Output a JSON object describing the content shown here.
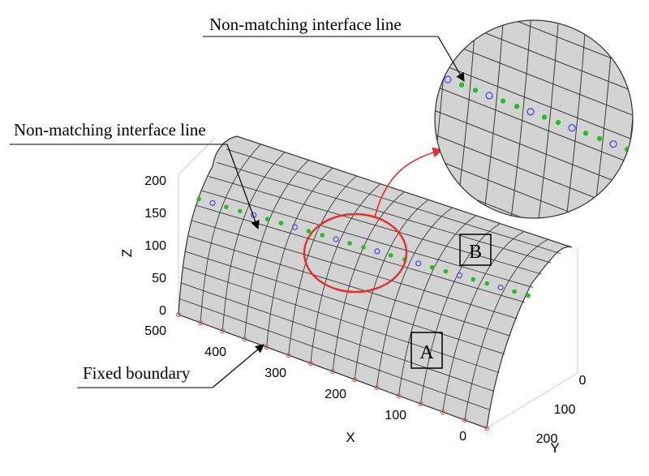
{
  "annotations": {
    "top_callout": "Non-matching interface line",
    "left_callout": "Non-matching interface line",
    "bottom_callout": "Fixed boundary",
    "patch_a": "A",
    "patch_b": "B"
  },
  "axes": {
    "z_label": "Z",
    "x_label": "X",
    "y_label": "Y",
    "z_ticks": [
      "200",
      "150",
      "100",
      "50",
      "0"
    ],
    "x_ticks": [
      "500",
      "400",
      "300",
      "200",
      "100",
      "0"
    ],
    "y_ticks": [
      "0",
      "100",
      "200"
    ]
  },
  "colors": {
    "surface": "#d3d3d3",
    "mesh_line": "#3a3a3a",
    "zoom_circle": "#e53030",
    "arrow": "#e53030",
    "node_green": "#22c022",
    "node_blue": "#4a4ae0",
    "node_red": "#e06060"
  }
}
